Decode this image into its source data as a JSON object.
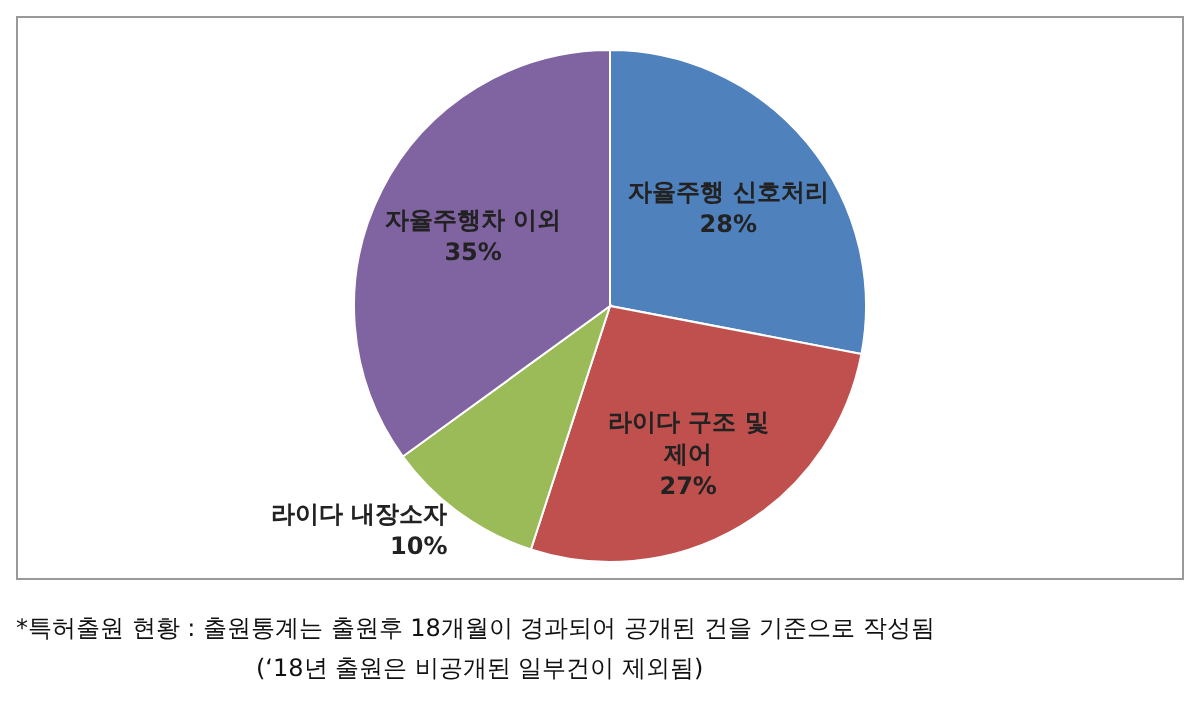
{
  "chart_data": {
    "type": "pie",
    "categories": [
      "자율주행 신호처리",
      "라이다 구조 및 제어",
      "라이다 내장소자",
      "자율주행차 이외"
    ],
    "values": [
      28,
      27,
      10,
      35
    ],
    "value_labels": [
      "28%",
      "27%",
      "10%",
      "35%"
    ],
    "colors": [
      "#4f81bd",
      "#c0504d",
      "#9bbb59",
      "#8064a2"
    ],
    "legend": false,
    "annotations": [
      "*특허출원 현황 : 출원통계는 출원후 18개월이 경과되어 공개된 건을 기준으로 작성됨",
      "(‘18년 출원은 비공개된 일부건이 제외됨)"
    ]
  }
}
